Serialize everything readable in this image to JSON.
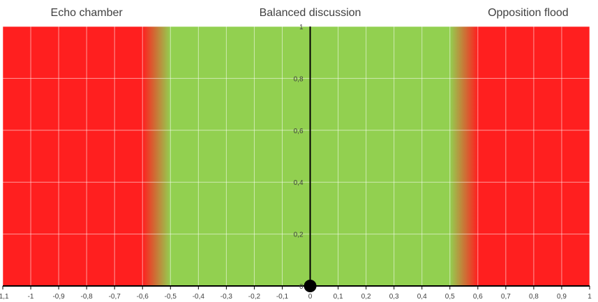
{
  "chart_data": {
    "type": "scatter",
    "title": "",
    "xlabel": "",
    "ylabel": "",
    "xlim": [
      -1.1,
      1
    ],
    "ylim": [
      0,
      1
    ],
    "x_ticks": [
      -1.1,
      -1,
      -0.9,
      -0.8,
      -0.7,
      -0.6,
      -0.5,
      -0.4,
      -0.3,
      -0.2,
      -0.1,
      0,
      0.1,
      0.2,
      0.3,
      0.4,
      0.5,
      0.6,
      0.7,
      0.8,
      0.9,
      1
    ],
    "x_tick_labels": [
      "-1,1",
      "-1",
      "-0,9",
      "-0,8",
      "-0,7",
      "-0,6",
      "-0,5",
      "-0,4",
      "-0,3",
      "-0,2",
      "-0,1",
      "0",
      "0,1",
      "0,2",
      "0,3",
      "0,4",
      "0,5",
      "0,6",
      "0,7",
      "0,8",
      "0,9",
      "1"
    ],
    "y_ticks": [
      0,
      0.2,
      0.4,
      0.6,
      0.8,
      1
    ],
    "y_tick_labels": [
      "0",
      "0,2",
      "0,4",
      "0,6",
      "0,8",
      "1"
    ],
    "grid": true,
    "regions": [
      {
        "label": "Echo chamber",
        "from": -1.1,
        "to": -0.6,
        "color": "#ff1f1f"
      },
      {
        "label": "Balanced discussion",
        "from": -0.5,
        "to": 0.5,
        "color": "#92d050"
      },
      {
        "label": "Opposition flood",
        "from": 0.6,
        "to": 1,
        "color": "#ff1f1f"
      }
    ],
    "points": [
      {
        "x": 0,
        "y": 0,
        "color": "#000000"
      }
    ]
  }
}
